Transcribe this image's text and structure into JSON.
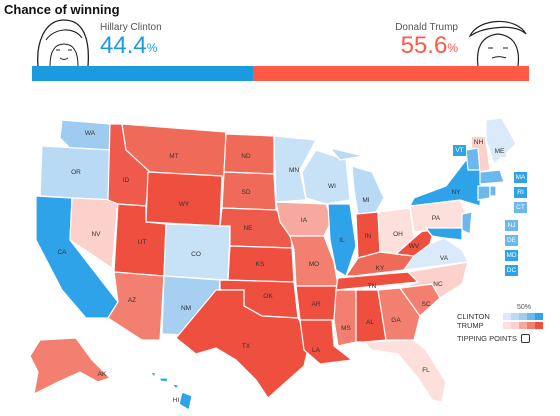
{
  "header": {
    "title": "Chance of winning"
  },
  "candidates": {
    "clinton": {
      "name": "Hillary Clinton",
      "pct": "44.4",
      "sign": "%",
      "fraction": 0.444,
      "color": "#1a9be0"
    },
    "trump": {
      "name": "Donald Trump",
      "pct": "55.6",
      "sign": "%",
      "fraction": 0.556,
      "color": "#ff5a45"
    }
  },
  "legend": {
    "scale_low": "50%",
    "scale_high": "90",
    "clinton_label": "CLINTON",
    "trump_label": "TRUMP",
    "tipping_label": "TIPPING POINTS"
  },
  "states": {
    "WA": "WA",
    "OR": "OR",
    "CA": "CA",
    "NV": "NV",
    "ID": "ID",
    "MT": "MT",
    "WY": "WY",
    "UT": "UT",
    "AZ": "AZ",
    "CO": "CO",
    "NM": "NM",
    "ND": "ND",
    "SD": "SD",
    "NE": "NE",
    "KS": "KS",
    "OK": "OK",
    "TX": "TX",
    "MN": "MN",
    "IA": "IA",
    "MO": "MO",
    "AR": "AR",
    "LA": "LA",
    "WI": "WI",
    "IL": "IL",
    "MI": "MI",
    "IN": "IN",
    "OH": "OH",
    "KY": "KY",
    "TN": "TN",
    "MS": "MS",
    "AL": "AL",
    "GA": "GA",
    "FL": "FL",
    "SC": "SC",
    "NC": "NC",
    "VA": "VA",
    "WV": "WV",
    "PA": "PA",
    "NY": "NY",
    "ME": "ME",
    "VT": "VT",
    "NH": "NH",
    "MA": "MA",
    "RI": "RI",
    "CT": "CT",
    "NJ": "NJ",
    "DE": "DE",
    "MD": "MD",
    "DC": "DC",
    "AK": "AK",
    "HI": "HI"
  }
}
